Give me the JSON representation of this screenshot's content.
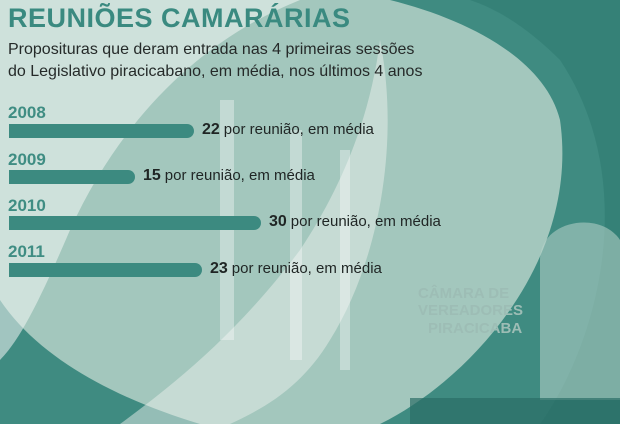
{
  "chart_data": {
    "type": "bar",
    "orientation": "horizontal",
    "title": "REUNIÕES CAMARÁRIAS",
    "subtitle": "Proposituras que deram entrada nas 4 primeiras sessões do Legislativo piracicabano, em média, nos últimos 4 anos",
    "categories": [
      "2008",
      "2009",
      "2010",
      "2011"
    ],
    "values": [
      22,
      15,
      30,
      23
    ],
    "value_suffix": "por reunião, em média",
    "colors": {
      "bar": "#3c8a80",
      "year": "#3f8d83",
      "title": "#3a8a80"
    },
    "background_text": [
      "CÂMARA DE",
      "VEREADORES",
      "PIRACICABA"
    ]
  }
}
